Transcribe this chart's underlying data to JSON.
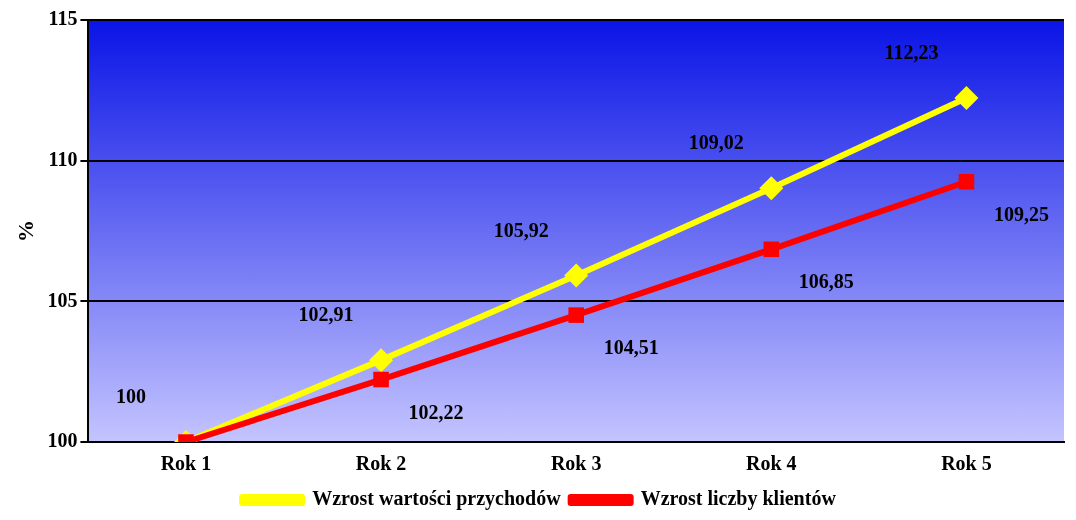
{
  "chart_data": {
    "type": "line",
    "ylabel": "%",
    "categories": [
      "Rok 1",
      "Rok 2",
      "Rok 3",
      "Rok 4",
      "Rok 5"
    ],
    "series": [
      {
        "name": "Wzrost wartości przychodów",
        "color": "#ffff00",
        "marker": "diamond",
        "values": [
          100,
          102.91,
          105.92,
          109.02,
          112.23
        ],
        "value_labels": [
          "100",
          "102,91",
          "105,92",
          "109,02",
          "112,23"
        ]
      },
      {
        "name": "Wzrost liczby klientów",
        "color": "#ff0000",
        "marker": "square",
        "values": [
          100,
          102.22,
          104.51,
          106.85,
          109.25
        ],
        "value_labels": [
          null,
          "102,22",
          "104,51",
          "106,85",
          "109,25"
        ]
      }
    ],
    "ylim": [
      100,
      115
    ],
    "yticks": [
      100,
      105,
      110,
      115
    ],
    "grid": "y",
    "legend": "bottom",
    "line_style": "solid"
  }
}
